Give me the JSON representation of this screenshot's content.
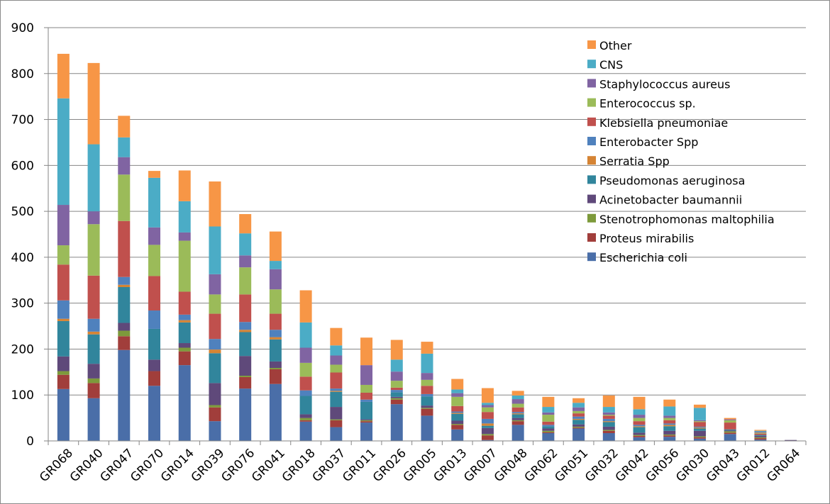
{
  "chart_data": {
    "type": "bar",
    "stacked": true,
    "ylim": [
      0,
      900
    ],
    "yticks": [
      0,
      100,
      200,
      300,
      400,
      500,
      600,
      700,
      800,
      900
    ],
    "grid": true,
    "legend_position": "top-right",
    "categories": [
      "GR068",
      "GR040",
      "GR047",
      "GR070",
      "GR014",
      "GR039",
      "GR076",
      "GR041",
      "GR018",
      "GR037",
      "GR011",
      "GR026",
      "GR005",
      "GR013",
      "GR007",
      "GR048",
      "GR062",
      "GR051",
      "GR032",
      "GR042",
      "GR056",
      "GR030",
      "GR043",
      "GR012",
      "GR064"
    ],
    "series": [
      {
        "name": "Escherichia coli",
        "color": "#4a6ea8",
        "values": [
          113,
          93,
          198,
          120,
          165,
          43,
          114,
          124,
          42,
          30,
          40,
          80,
          55,
          25,
          2,
          35,
          17,
          27,
          17,
          8,
          9,
          5,
          15,
          3,
          0
        ]
      },
      {
        "name": "Proteus mirabilis",
        "color": "#a13e3b",
        "values": [
          31,
          33,
          30,
          32,
          30,
          30,
          25,
          32,
          3,
          15,
          3,
          10,
          15,
          10,
          10,
          8,
          2,
          2,
          5,
          3,
          3,
          3,
          3,
          3,
          0
        ]
      },
      {
        "name": "Stenotrophomonas maltophilia",
        "color": "#7d9a3b",
        "values": [
          8,
          10,
          12,
          0,
          8,
          5,
          3,
          3,
          5,
          2,
          2,
          3,
          2,
          2,
          3,
          2,
          3,
          2,
          2,
          2,
          2,
          2,
          3,
          2,
          0
        ]
      },
      {
        "name": "Acinetobacter baumannii",
        "color": "#5f497a",
        "values": [
          32,
          32,
          17,
          25,
          10,
          48,
          43,
          14,
          8,
          27,
          2,
          3,
          5,
          7,
          13,
          5,
          5,
          5,
          7,
          5,
          8,
          12,
          2,
          3,
          2
        ]
      },
      {
        "name": "Pseudomonas aeruginosa",
        "color": "#31859c",
        "values": [
          77,
          64,
          78,
          67,
          45,
          65,
          52,
          48,
          40,
          33,
          38,
          10,
          20,
          15,
          5,
          8,
          5,
          10,
          10,
          12,
          10,
          5,
          2,
          2,
          0
        ]
      },
      {
        "name": "Serratia Spp",
        "color": "#d58434",
        "values": [
          5,
          6,
          5,
          0,
          5,
          8,
          5,
          5,
          0,
          2,
          0,
          0,
          0,
          2,
          5,
          2,
          0,
          2,
          2,
          2,
          3,
          2,
          0,
          0,
          0
        ]
      },
      {
        "name": "Enterobacter Spp",
        "color": "#4f81bd",
        "values": [
          40,
          28,
          17,
          40,
          12,
          23,
          17,
          16,
          12,
          5,
          5,
          5,
          5,
          3,
          10,
          3,
          3,
          5,
          5,
          3,
          3,
          2,
          0,
          0,
          0
        ]
      },
      {
        "name": "Klebsiella pneumoniae",
        "color": "#c0504d",
        "values": [
          78,
          94,
          122,
          75,
          50,
          55,
          60,
          35,
          30,
          35,
          15,
          5,
          18,
          12,
          15,
          10,
          7,
          7,
          7,
          8,
          7,
          10,
          15,
          3,
          0
        ]
      },
      {
        "name": "Enterococcus sp.",
        "color": "#9bbb59",
        "values": [
          42,
          112,
          101,
          68,
          111,
          42,
          59,
          53,
          30,
          17,
          17,
          15,
          13,
          20,
          10,
          8,
          15,
          5,
          2,
          7,
          5,
          2,
          5,
          2,
          0
        ]
      },
      {
        "name": "Staphylococcus aureus",
        "color": "#8064a2",
        "values": [
          88,
          28,
          38,
          38,
          18,
          44,
          26,
          44,
          33,
          20,
          43,
          20,
          15,
          8,
          5,
          10,
          5,
          8,
          5,
          7,
          5,
          2,
          2,
          2,
          0
        ]
      },
      {
        "name": "CNS",
        "color": "#4bacc6",
        "values": [
          232,
          146,
          43,
          108,
          68,
          104,
          48,
          18,
          55,
          22,
          0,
          26,
          42,
          8,
          5,
          8,
          12,
          10,
          12,
          12,
          20,
          27,
          0,
          2,
          0
        ]
      },
      {
        "name": "Other",
        "color": "#f79646",
        "values": [
          97,
          177,
          47,
          15,
          67,
          98,
          42,
          64,
          70,
          38,
          60,
          43,
          26,
          23,
          32,
          10,
          22,
          10,
          25,
          27,
          15,
          7,
          3,
          2,
          0
        ]
      }
    ]
  }
}
